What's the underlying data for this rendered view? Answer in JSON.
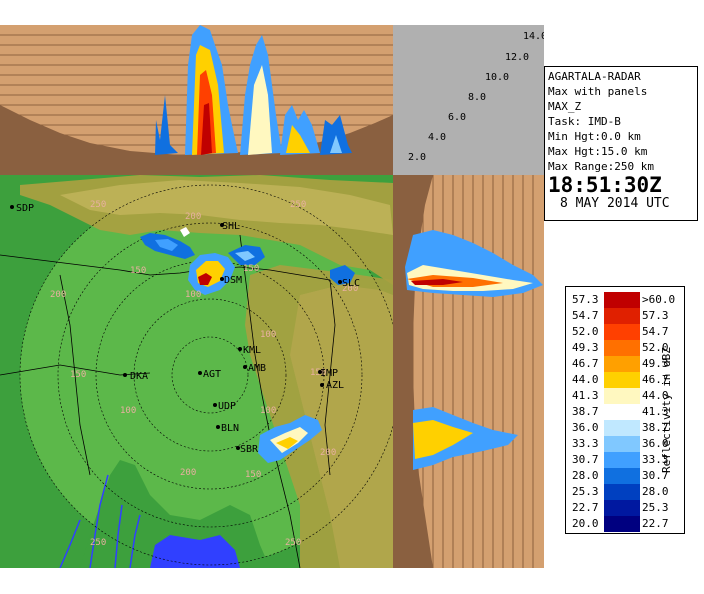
{
  "header": {
    "station": "AGARTALA-RADAR",
    "product": "Max with panels",
    "field": "MAX_Z",
    "task": "Task: IMD-B",
    "min_hgt": "Min Hgt:0.0 km",
    "max_hgt": "Max Hgt:15.0 km",
    "max_range": "Max Range:250 km",
    "time": "18:51:30Z",
    "date": "8 MAY 2014 UTC"
  },
  "height_scale": [
    "2.0",
    "4.0",
    "6.0",
    "8.0",
    "10.0",
    "12.0",
    "14.0"
  ],
  "map": {
    "range_rings": [
      "50",
      "100",
      "150",
      "200",
      "250"
    ],
    "sites": [
      "SDP",
      "SHL",
      "DSM",
      "SLC",
      "KML",
      "AMB",
      "DKA",
      "AGT",
      "UDP",
      "BLN",
      "SBR",
      "AZL",
      "IMP"
    ]
  },
  "legend": {
    "axis_label": "Reflectivity in dBZ",
    "bins": [
      {
        "lo": "57.3",
        "hi": ">60.0",
        "color": "#c00000"
      },
      {
        "lo": "54.7",
        "hi": "57.3",
        "color": "#e02000"
      },
      {
        "lo": "52.0",
        "hi": "54.7",
        "color": "#ff4000"
      },
      {
        "lo": "49.3",
        "hi": "52.0",
        "color": "#ff7000"
      },
      {
        "lo": "46.7",
        "hi": "49.3",
        "color": "#ffa000"
      },
      {
        "lo": "44.0",
        "hi": "46.7",
        "color": "#ffd000"
      },
      {
        "lo": "41.3",
        "hi": "44.0",
        "color": "#fff8c0"
      },
      {
        "lo": "38.7",
        "hi": "41.3",
        "color": "#ffffff"
      },
      {
        "lo": "36.0",
        "hi": "38.7",
        "color": "#c0e8ff"
      },
      {
        "lo": "33.3",
        "hi": "36.0",
        "color": "#80c8ff"
      },
      {
        "lo": "30.7",
        "hi": "33.3",
        "color": "#40a0ff"
      },
      {
        "lo": "28.0",
        "hi": "30.7",
        "color": "#1070e0"
      },
      {
        "lo": "25.3",
        "hi": "28.0",
        "color": "#0040c0"
      },
      {
        "lo": "22.7",
        "hi": "25.3",
        "color": "#0018a0"
      },
      {
        "lo": "20.0",
        "hi": "22.7",
        "color": "#000080"
      }
    ]
  },
  "colors": {
    "panel_bg": "#d4a070",
    "terrain_flat": "#3da03d",
    "terrain_hill": "#a8a040",
    "corner_gray": "#b0b0b0",
    "range_circle": "#9ad070",
    "water": "#3040ff"
  }
}
